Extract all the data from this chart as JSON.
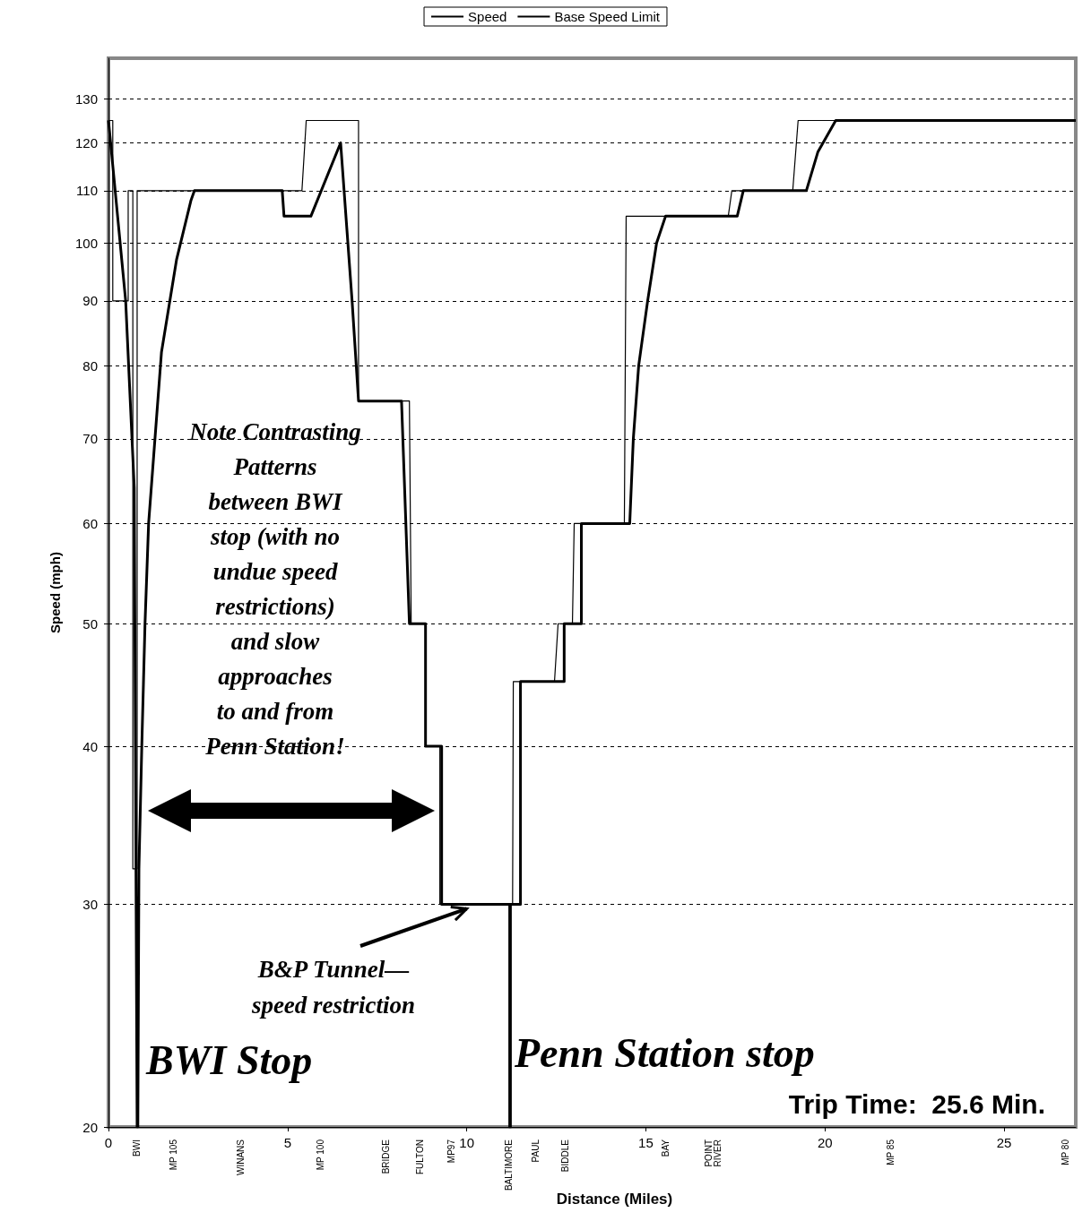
{
  "chart_data": {
    "type": "line",
    "xlabel": "Distance (Miles)",
    "ylabel": "Speed (mph)",
    "xlim": [
      0,
      27
    ],
    "xticks": [
      0,
      5,
      10,
      15,
      20,
      25
    ],
    "ylim": [
      20,
      140
    ],
    "yticks": [
      20,
      30,
      40,
      50,
      60,
      70,
      80,
      90,
      100,
      110,
      120,
      130
    ],
    "log": "y",
    "grid": "y",
    "legend": "top",
    "marker": "none",
    "line_style": "solid",
    "series": [
      {
        "name": "Speed",
        "color": "#000000",
        "x": [
          0,
          0.48,
          0.72,
          0.8,
          0.82,
          0.85,
          0.93,
          1.02,
          1.12,
          1.48,
          1.9,
          2.3,
          2.4,
          4.85,
          4.9,
          5.65,
          6.48,
          6.8,
          6.98,
          8.18,
          8.4,
          8.85,
          8.85,
          9.3,
          9.3,
          11.2,
          11.2,
          11.22,
          11.22,
          11.5,
          11.5,
          12.72,
          12.72,
          13.2,
          13.2,
          14.55,
          14.65,
          14.8,
          15.05,
          15.3,
          15.55,
          17.55,
          17.72,
          19.48,
          19.8,
          20.3,
          27
        ],
        "values": [
          125,
          90,
          64,
          20,
          20,
          32,
          40,
          50,
          60,
          82,
          97,
          108,
          110,
          110,
          105,
          105,
          120,
          90,
          75,
          75,
          50,
          50,
          40,
          40,
          30,
          30,
          20,
          20,
          30,
          30,
          45,
          45,
          50,
          50,
          60,
          60,
          70,
          80,
          90,
          100,
          105,
          105,
          110,
          110,
          118,
          125,
          125
        ]
      },
      {
        "name": "Base Speed Limit",
        "color": "#000000",
        "x": [
          0,
          0.12,
          0.12,
          0.55,
          0.55,
          0.68,
          0.68,
          0.8,
          0.8,
          5.4,
          5.52,
          6.98,
          6.98,
          8.4,
          8.45,
          8.85,
          8.85,
          9.25,
          9.25,
          11.28,
          11.3,
          12.45,
          12.55,
          12.95,
          13.0,
          14.4,
          14.45,
          17.3,
          17.4,
          19.1,
          19.25,
          27
        ],
        "values": [
          125,
          125,
          90,
          90,
          110,
          110,
          32,
          32,
          110,
          110,
          125,
          125,
          75,
          75,
          50,
          50,
          40,
          40,
          30,
          30,
          45,
          45,
          50,
          50,
          60,
          60,
          105,
          105,
          110,
          110,
          125,
          125
        ]
      }
    ],
    "annotations": [
      "Note Contrasting\nPatterns\nbetween BWI\nstop (with no\nundue speed\nrestrictions)\nand slow\napproaches\nto and from\nPenn Station!",
      {
        "text": "B&P Tunnel—\nspeed restriction",
        "x": 10,
        "y": 30
      },
      "BWI Stop",
      "Penn Station stop",
      "Trip Time:  25.6 Min.",
      "BWI",
      "MP 105",
      "WINANS",
      "MP 100",
      "BRIDGE",
      "FULTON",
      "MP97",
      "BALTIMORE",
      "PAUL",
      "BIDDLE",
      "BAY",
      "POINT\nRIVER",
      "MP 85",
      "MP 80"
    ]
  }
}
